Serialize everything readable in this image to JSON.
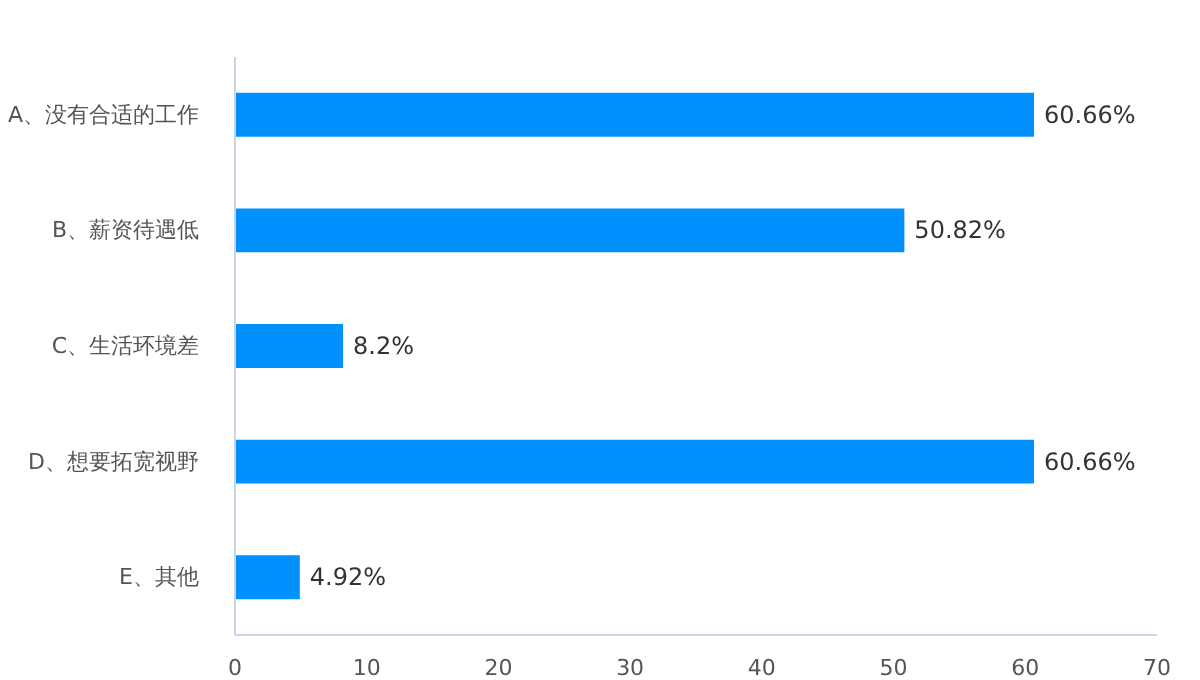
{
  "chart_data": {
    "type": "bar",
    "orientation": "horizontal",
    "categories": [
      "A、没有合适的工作",
      "B、薪资待遇低",
      "C、生活环境差",
      "D、想要拓宽视野",
      "E、其他"
    ],
    "values": [
      60.66,
      50.82,
      8.2,
      60.66,
      4.92
    ],
    "value_labels": [
      "60.66%",
      "50.82%",
      "8.2%",
      "60.66%",
      "4.92%"
    ],
    "color": "#0091ff",
    "xlim": [
      0,
      70
    ],
    "xticks": [
      0,
      10,
      20,
      30,
      40,
      50,
      60,
      70
    ],
    "grid": false
  }
}
